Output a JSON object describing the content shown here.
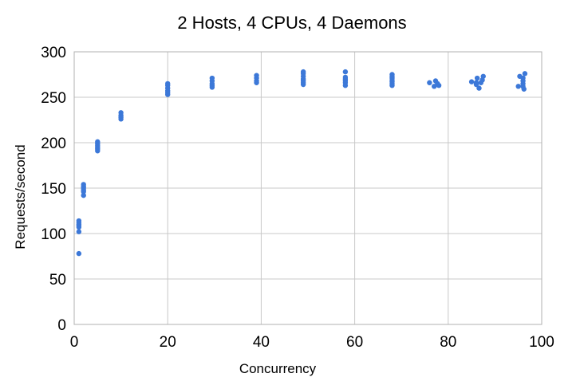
{
  "chart_data": {
    "type": "scatter",
    "title": "2 Hosts, 4 CPUs, 4 Daemons",
    "xlabel": "Concurrency",
    "ylabel": "Requests/second",
    "xlim": [
      0,
      100
    ],
    "ylim": [
      0,
      300
    ],
    "xticks": [
      0,
      20,
      40,
      60,
      80,
      100
    ],
    "yticks": [
      0,
      50,
      100,
      150,
      200,
      250,
      300
    ],
    "grid": true,
    "legend": "none",
    "series": [
      {
        "color": "#3c78d8",
        "points": [
          [
            1,
            78
          ],
          [
            1,
            102
          ],
          [
            1,
            107
          ],
          [
            1,
            109
          ],
          [
            1,
            110
          ],
          [
            1,
            112
          ],
          [
            1,
            114
          ],
          [
            2,
            142
          ],
          [
            2,
            146
          ],
          [
            2,
            148
          ],
          [
            2,
            150
          ],
          [
            2,
            152
          ],
          [
            2,
            154
          ],
          [
            5,
            191
          ],
          [
            5,
            193
          ],
          [
            5,
            195
          ],
          [
            5,
            197
          ],
          [
            5,
            199
          ],
          [
            5,
            201
          ],
          [
            10,
            226
          ],
          [
            10,
            228
          ],
          [
            10,
            230
          ],
          [
            10,
            233
          ],
          [
            20,
            253
          ],
          [
            20,
            255
          ],
          [
            20,
            257
          ],
          [
            20,
            260
          ],
          [
            20,
            263
          ],
          [
            20,
            265
          ],
          [
            29.5,
            261
          ],
          [
            29.5,
            263
          ],
          [
            29.5,
            265
          ],
          [
            29.5,
            268
          ],
          [
            29.5,
            271
          ],
          [
            39,
            266
          ],
          [
            39,
            268
          ],
          [
            39,
            271
          ],
          [
            39,
            274
          ],
          [
            49,
            264
          ],
          [
            49,
            266
          ],
          [
            49,
            268
          ],
          [
            49,
            270
          ],
          [
            49,
            273
          ],
          [
            49,
            276
          ],
          [
            49,
            278
          ],
          [
            58,
            263
          ],
          [
            58,
            266
          ],
          [
            58,
            268
          ],
          [
            58,
            270
          ],
          [
            58,
            272
          ],
          [
            58,
            278
          ],
          [
            68,
            263
          ],
          [
            68,
            265
          ],
          [
            68,
            267
          ],
          [
            68,
            269
          ],
          [
            68,
            271
          ],
          [
            68,
            273
          ],
          [
            68,
            275
          ],
          [
            76,
            266
          ],
          [
            77,
            262
          ],
          [
            77.3,
            268
          ],
          [
            77.7,
            265
          ],
          [
            78,
            263
          ],
          [
            85,
            267
          ],
          [
            86,
            264
          ],
          [
            86,
            266
          ],
          [
            86.2,
            271
          ],
          [
            86.6,
            260
          ],
          [
            87,
            266
          ],
          [
            87.3,
            269
          ],
          [
            87.5,
            273
          ],
          [
            95,
            262
          ],
          [
            95.3,
            273
          ],
          [
            96,
            262
          ],
          [
            96,
            265
          ],
          [
            96,
            268
          ],
          [
            96,
            271
          ],
          [
            96.2,
            259
          ],
          [
            96.4,
            276
          ]
        ]
      }
    ]
  }
}
